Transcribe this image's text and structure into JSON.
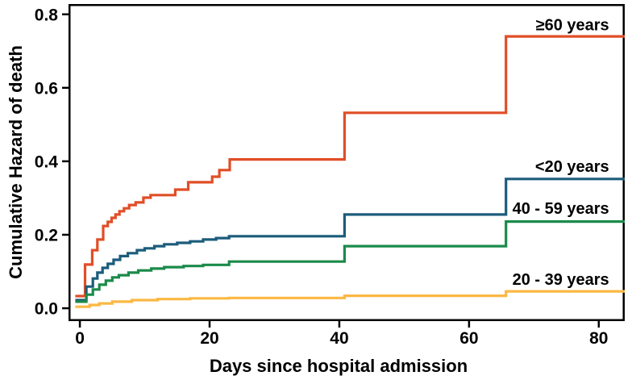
{
  "figure": {
    "background": "#ffffff",
    "axis_color": "#000000",
    "text_color": "#000000"
  },
  "chart_data": {
    "type": "line",
    "subtype": "step-after",
    "title": "",
    "xlabel": "Days since hospital admission",
    "ylabel": "Cumulative Hazard of death",
    "xlim": [
      -1.75,
      84
    ],
    "ylim": [
      -0.035,
      0.828
    ],
    "xticks": [
      0,
      20,
      40,
      60,
      80
    ],
    "yticks": [
      "0.0",
      "0.2",
      "0.4",
      "0.6",
      "0.8"
    ],
    "grid": false,
    "legend_position": "inline-right-labels",
    "series": [
      {
        "id": "ge-60-years",
        "name": "≥60 years",
        "color": "#E04E27",
        "label_anchor": [
          81.6,
          0.757
        ],
        "points": [
          [
            -0.7,
            0.033
          ],
          [
            0.8,
            0.119
          ],
          [
            1.9,
            0.158
          ],
          [
            2.7,
            0.187
          ],
          [
            3.6,
            0.224
          ],
          [
            4.3,
            0.235
          ],
          [
            4.9,
            0.246
          ],
          [
            5.5,
            0.255
          ],
          [
            6.1,
            0.264
          ],
          [
            6.8,
            0.272
          ],
          [
            7.6,
            0.281
          ],
          [
            8.6,
            0.288
          ],
          [
            9.8,
            0.301
          ],
          [
            10.9,
            0.308
          ],
          [
            14.7,
            0.323
          ],
          [
            16.7,
            0.343
          ],
          [
            20.4,
            0.358
          ],
          [
            21.5,
            0.376
          ],
          [
            23.1,
            0.405
          ],
          [
            40.8,
            0.532
          ],
          [
            65.7,
            0.74
          ],
          [
            84,
            0.74
          ]
        ]
      },
      {
        "id": "lt-20-years",
        "name": "<20 years",
        "color": "#1B5C7B",
        "label_anchor": [
          81.6,
          0.371
        ],
        "points": [
          [
            -0.7,
            0.022
          ],
          [
            1,
            0.059
          ],
          [
            2,
            0.081
          ],
          [
            2.7,
            0.097
          ],
          [
            3.5,
            0.11
          ],
          [
            4.3,
            0.121
          ],
          [
            5.2,
            0.132
          ],
          [
            6.2,
            0.142
          ],
          [
            7.4,
            0.15
          ],
          [
            8.8,
            0.158
          ],
          [
            10,
            0.163
          ],
          [
            11.5,
            0.169
          ],
          [
            13,
            0.174
          ],
          [
            15,
            0.178
          ],
          [
            17,
            0.182
          ],
          [
            19,
            0.187
          ],
          [
            21,
            0.191
          ],
          [
            23,
            0.196
          ],
          [
            40.8,
            0.255
          ],
          [
            65.7,
            0.352
          ],
          [
            84,
            0.352
          ]
        ]
      },
      {
        "id": "40-59-years",
        "name": "40 - 59 years",
        "color": "#1B8A4A",
        "label_anchor": [
          81.6,
          0.257
        ],
        "points": [
          [
            -0.7,
            0.018
          ],
          [
            1,
            0.037
          ],
          [
            2,
            0.051
          ],
          [
            3,
            0.064
          ],
          [
            4,
            0.075
          ],
          [
            5,
            0.084
          ],
          [
            6,
            0.09
          ],
          [
            7.5,
            0.097
          ],
          [
            9,
            0.103
          ],
          [
            11,
            0.108
          ],
          [
            13,
            0.112
          ],
          [
            16,
            0.115
          ],
          [
            19,
            0.118
          ],
          [
            23,
            0.127
          ],
          [
            40.8,
            0.169
          ],
          [
            65.7,
            0.236
          ],
          [
            84,
            0.236
          ]
        ]
      },
      {
        "id": "20-39-years",
        "name": "20 - 39 years",
        "color": "#FBB843",
        "label_anchor": [
          81.6,
          0.064
        ],
        "points": [
          [
            -0.7,
            0.004
          ],
          [
            1.5,
            0.009
          ],
          [
            3,
            0.013
          ],
          [
            5,
            0.018
          ],
          [
            8,
            0.022
          ],
          [
            12,
            0.025
          ],
          [
            17,
            0.027
          ],
          [
            23,
            0.028
          ],
          [
            40.8,
            0.034
          ],
          [
            65.7,
            0.046
          ],
          [
            84,
            0.046
          ]
        ]
      }
    ]
  }
}
